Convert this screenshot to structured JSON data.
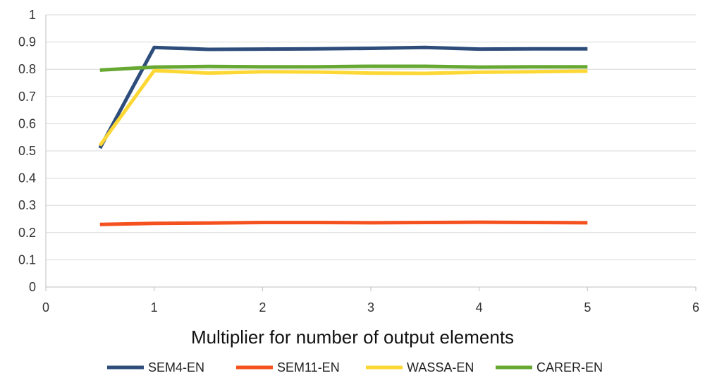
{
  "chart_data": {
    "type": "line",
    "title": "",
    "xlabel": "Multiplier for number of output elements",
    "ylabel": "",
    "xlim": [
      0,
      6
    ],
    "ylim": [
      0,
      1
    ],
    "x_ticks": [
      "0",
      "1",
      "2",
      "3",
      "4",
      "5",
      "6"
    ],
    "y_ticks": [
      "0",
      "0.1",
      "0.2",
      "0.3",
      "0.4",
      "0.5",
      "0.6",
      "0.7",
      "0.8",
      "0.9",
      "1"
    ],
    "grid": "horizontal",
    "legend_position": "bottom",
    "x": [
      0.5,
      1,
      1.5,
      2,
      2.5,
      3,
      3.5,
      4,
      4.5,
      5
    ],
    "series": [
      {
        "name": "SEM4-EN",
        "color": "#2e4d7b",
        "values": [
          0.51,
          0.88,
          0.873,
          0.874,
          0.875,
          0.877,
          0.88,
          0.874,
          0.875,
          0.875
        ]
      },
      {
        "name": "SEM11-EN",
        "color": "#f4511e",
        "values": [
          0.23,
          0.234,
          0.235,
          0.237,
          0.237,
          0.236,
          0.237,
          0.238,
          0.237,
          0.236
        ]
      },
      {
        "name": "WASSA-EN",
        "color": "#fdd835",
        "values": [
          0.52,
          0.795,
          0.786,
          0.791,
          0.79,
          0.786,
          0.785,
          0.789,
          0.791,
          0.793
        ]
      },
      {
        "name": "CARER-EN",
        "color": "#66a832",
        "values": [
          0.797,
          0.808,
          0.81,
          0.809,
          0.809,
          0.811,
          0.811,
          0.808,
          0.809,
          0.809
        ]
      }
    ]
  }
}
